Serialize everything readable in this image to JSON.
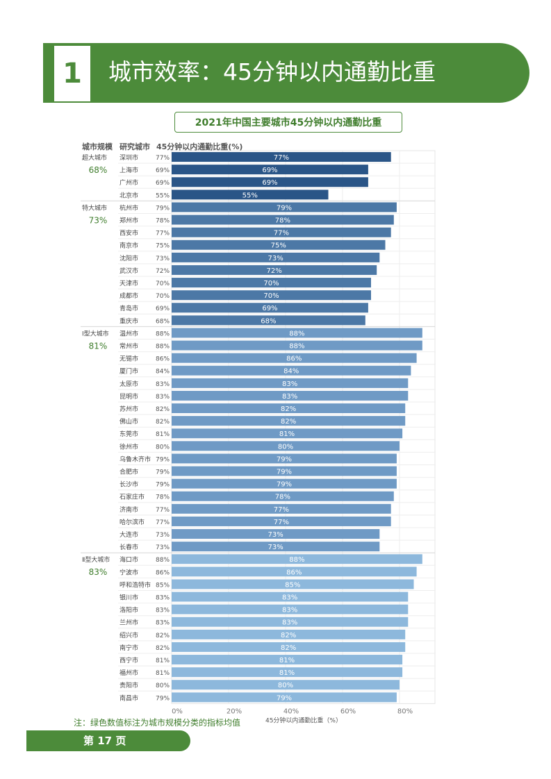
{
  "section": {
    "number": "1",
    "title": "城市效率：45分钟以内通勤比重"
  },
  "column_headers": {
    "group": "城市规模",
    "city": "研究城市",
    "value": "45分钟以内通勤比重(%)"
  },
  "note": "注：绿色数值标注为城市规模分类的指标均值",
  "footer": {
    "page": "第 17 页"
  },
  "colors": {
    "green": "#4c8b3a",
    "super": "#2a5587",
    "mega": "#4c78a6",
    "big1": "#6f9ac5",
    "big2": "#8db8dc"
  },
  "chart_data": {
    "type": "bar",
    "orientation": "horizontal",
    "title": "2021年中国主要城市45分钟以内通勤比重",
    "xlabel": "45分钟以内通勤比重（%）",
    "xlim": [
      0,
      90
    ],
    "xticks": [
      "0%",
      "20%",
      "40%",
      "60%",
      "80%"
    ],
    "xtick_values": [
      0,
      20,
      40,
      60,
      80
    ],
    "groups": [
      {
        "name": "超大城市",
        "mean": "68%",
        "color_key": "super",
        "cities": [
          {
            "name": "深圳市",
            "value": 77,
            "label": "77%"
          },
          {
            "name": "上海市",
            "value": 69,
            "label": "69%"
          },
          {
            "name": "广州市",
            "value": 69,
            "label": "69%"
          },
          {
            "name": "北京市",
            "value": 55,
            "label": "55%"
          }
        ]
      },
      {
        "name": "特大城市",
        "mean": "73%",
        "color_key": "mega",
        "cities": [
          {
            "name": "杭州市",
            "value": 79,
            "label": "79%"
          },
          {
            "name": "郑州市",
            "value": 78,
            "label": "78%"
          },
          {
            "name": "西安市",
            "value": 77,
            "label": "77%"
          },
          {
            "name": "南京市",
            "value": 75,
            "label": "75%"
          },
          {
            "name": "沈阳市",
            "value": 73,
            "label": "73%"
          },
          {
            "name": "武汉市",
            "value": 72,
            "label": "72%"
          },
          {
            "name": "天津市",
            "value": 70,
            "label": "70%"
          },
          {
            "name": "成都市",
            "value": 70,
            "label": "70%"
          },
          {
            "name": "青岛市",
            "value": 69,
            "label": "69%"
          },
          {
            "name": "重庆市",
            "value": 68,
            "label": "68%"
          }
        ]
      },
      {
        "name": "Ⅰ型大城市",
        "mean": "81%",
        "color_key": "big1",
        "cities": [
          {
            "name": "温州市",
            "value": 88,
            "label": "88%"
          },
          {
            "name": "常州市",
            "value": 88,
            "label": "88%"
          },
          {
            "name": "无锡市",
            "value": 86,
            "label": "86%"
          },
          {
            "name": "厦门市",
            "value": 84,
            "label": "84%"
          },
          {
            "name": "太原市",
            "value": 83,
            "label": "83%"
          },
          {
            "name": "昆明市",
            "value": 83,
            "label": "83%"
          },
          {
            "name": "苏州市",
            "value": 82,
            "label": "82%"
          },
          {
            "name": "佛山市",
            "value": 82,
            "label": "82%"
          },
          {
            "name": "东莞市",
            "value": 81,
            "label": "81%"
          },
          {
            "name": "徐州市",
            "value": 80,
            "label": "80%"
          },
          {
            "name": "乌鲁木齐市",
            "value": 79,
            "label": "79%"
          },
          {
            "name": "合肥市",
            "value": 79,
            "label": "79%"
          },
          {
            "name": "长沙市",
            "value": 79,
            "label": "79%"
          },
          {
            "name": "石家庄市",
            "value": 78,
            "label": "78%"
          },
          {
            "name": "济南市",
            "value": 77,
            "label": "77%"
          },
          {
            "name": "哈尔滨市",
            "value": 77,
            "label": "77%"
          },
          {
            "name": "大连市",
            "value": 73,
            "label": "73%"
          },
          {
            "name": "长春市",
            "value": 73,
            "label": "73%"
          }
        ]
      },
      {
        "name": "Ⅱ型大城市",
        "mean": "83%",
        "color_key": "big2",
        "cities": [
          {
            "name": "海口市",
            "value": 88,
            "label": "88%"
          },
          {
            "name": "宁波市",
            "value": 86,
            "label": "86%"
          },
          {
            "name": "呼和浩特市",
            "value": 85,
            "label": "85%"
          },
          {
            "name": "银川市",
            "value": 83,
            "label": "83%"
          },
          {
            "name": "洛阳市",
            "value": 83,
            "label": "83%"
          },
          {
            "name": "兰州市",
            "value": 83,
            "label": "83%"
          },
          {
            "name": "绍兴市",
            "value": 82,
            "label": "82%"
          },
          {
            "name": "南宁市",
            "value": 82,
            "label": "82%"
          },
          {
            "name": "西宁市",
            "value": 81,
            "label": "81%"
          },
          {
            "name": "福州市",
            "value": 81,
            "label": "81%"
          },
          {
            "name": "贵阳市",
            "value": 80,
            "label": "80%"
          },
          {
            "name": "南昌市",
            "value": 79,
            "label": "79%"
          }
        ]
      }
    ]
  }
}
